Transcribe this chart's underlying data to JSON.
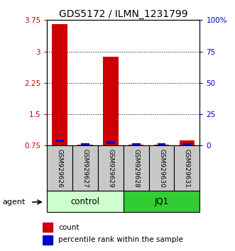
{
  "title": "GDS5172 / ILMN_1231799",
  "samples": [
    "GSM929626",
    "GSM929627",
    "GSM929629",
    "GSM929628",
    "GSM929630",
    "GSM929631"
  ],
  "red_values": [
    3.65,
    0.78,
    2.87,
    0.78,
    0.78,
    0.88
  ],
  "blue_values": [
    0.03,
    0.0,
    0.02,
    0.0,
    0.0,
    0.01
  ],
  "ylim": [
    0.75,
    3.75
  ],
  "yticks_left": [
    0.75,
    1.5,
    2.25,
    3.0,
    3.75
  ],
  "yticks_left_labels": [
    "0.75",
    "1.5",
    "2.25",
    "3",
    "3.75"
  ],
  "yticks_right_labels": [
    "0",
    "25",
    "50",
    "75",
    "100%"
  ],
  "red_color": "#cc0000",
  "blue_color": "#0000cc",
  "bar_width": 0.6,
  "control_color": "#ccffcc",
  "jq1_color": "#33cc33",
  "sample_bg_color": "#c8c8c8",
  "group_label_control": "control",
  "group_label_jq1": "JQ1",
  "agent_label": "agent",
  "legend_count": "count",
  "legend_percentile": "percentile rank within the sample",
  "title_fontsize": 10,
  "tick_fontsize": 7.5,
  "sample_fontsize": 6.5,
  "group_fontsize": 8.5
}
